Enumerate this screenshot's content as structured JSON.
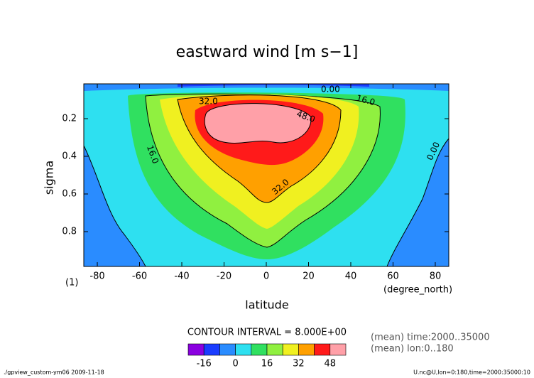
{
  "chart_data": {
    "type": "contour",
    "title": "eastward wind [m s−1]",
    "xlabel": "latitude",
    "ylabel": "sigma",
    "x_index_label": "(1)",
    "x_unit_label": "(degree_north)",
    "xlim": [
      -86.4,
      86.4
    ],
    "xticks": [
      -80,
      -60,
      -40,
      -20,
      0,
      20,
      40,
      60,
      80
    ],
    "ylim": [
      0.015,
      0.985
    ],
    "yticks": [
      0.2,
      0.4,
      0.6,
      0.8
    ],
    "levels": [
      -24,
      -16,
      -8,
      0,
      8,
      16,
      24,
      32,
      40,
      48,
      56
    ],
    "colors": [
      "#8a00e0",
      "#1a3cff",
      "#2a8cff",
      "#2ee0f0",
      "#30e060",
      "#90f040",
      "#f0f020",
      "#ffa000",
      "#ff1a1a",
      "#ffa0a8"
    ],
    "contour_labels": [
      "0.00",
      "16.0",
      "32.0",
      "48.0",
      "16.0",
      "32.0",
      "0.00"
    ],
    "colorbar_ticks": [
      -16,
      0,
      16,
      32,
      48
    ],
    "contour_interval": "CONTOUR INTERVAL = 8.000E+00",
    "notes": [
      "(mean) time:2000..35000",
      "(mean) lon:0..180"
    ],
    "footer_left": "./gpview_custom-ym06  2009-11-18",
    "footer_right": "U.nc@U,lon=0:180,time=2000:35000:10"
  }
}
